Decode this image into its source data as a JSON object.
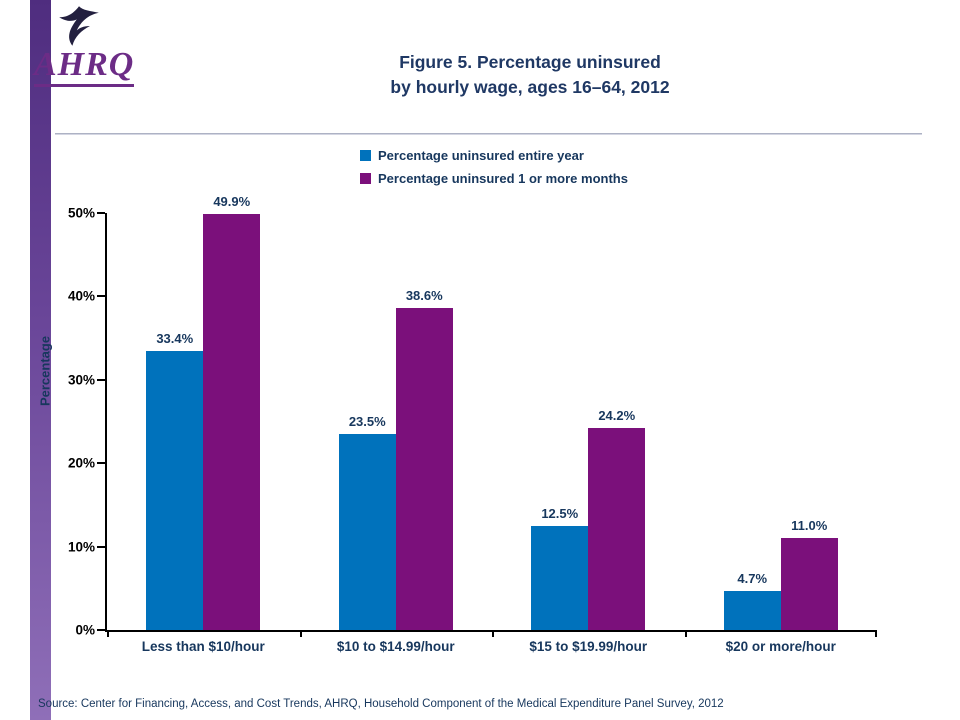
{
  "header": {
    "logo_text": "AHRQ",
    "title_line1": "Figure 5. Percentage uninsured",
    "title_line2": "by hourly wage, ages 16–64, 2012"
  },
  "chart_data": {
    "type": "bar",
    "title": "Figure 5. Percentage uninsured by hourly wage, ages 16–64, 2012",
    "categories": [
      "Less than $10/hour",
      "$10 to $14.99/hour",
      "$15 to $19.99/hour",
      "$20 or more/hour"
    ],
    "series": [
      {
        "name": "Percentage uninsured entire year",
        "color": "#0072bc",
        "values": [
          33.4,
          23.5,
          12.5,
          4.7
        ]
      },
      {
        "name": "Percentage uninsured 1 or more months",
        "color": "#7b107b",
        "values": [
          49.9,
          38.6,
          24.2,
          11.0
        ]
      }
    ],
    "xlabel": "",
    "ylabel": "Percentage",
    "ylim": [
      0,
      50
    ],
    "yticks": [
      0,
      10,
      20,
      30,
      40,
      50
    ],
    "ytick_labels": [
      "0%",
      "10%",
      "20%",
      "30%",
      "40%",
      "50%"
    ],
    "legend_position": "top",
    "grid": false
  },
  "footer": {
    "source": "Source: Center for Financing, Access, and Cost Trends, AHRQ, Household Component of the Medical Expenditure Panel Survey,  2012"
  }
}
